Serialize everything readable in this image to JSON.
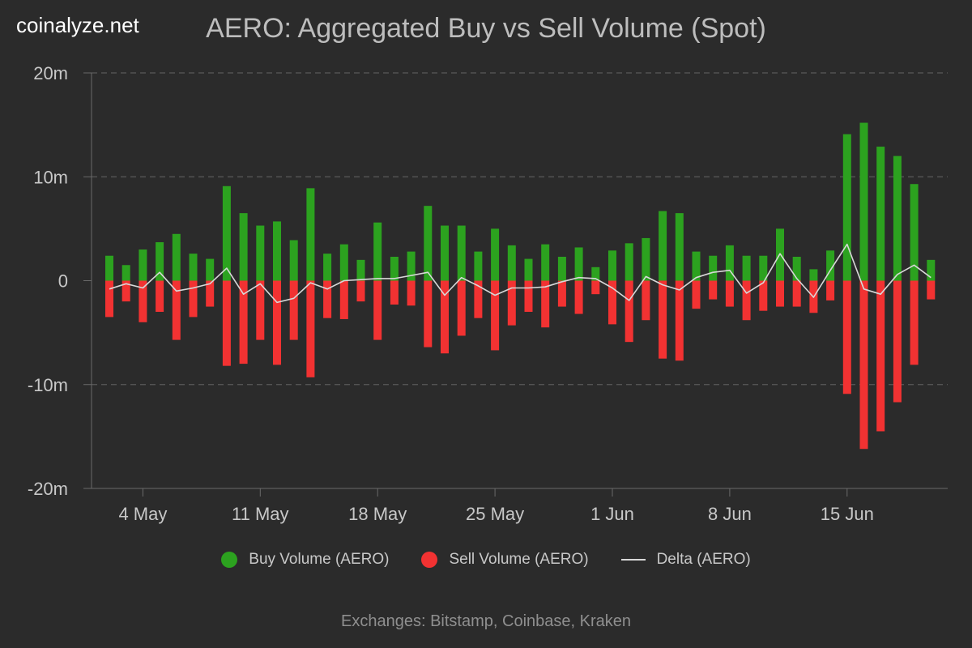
{
  "brand": "coinalyze.net",
  "title": "AERO: Aggregated Buy vs Sell Volume (Spot)",
  "footer": "Exchanges: Bitstamp, Coinbase, Kraken",
  "colors": {
    "buy": "#2ca21f",
    "sell": "#f23232",
    "delta": "#d8d8d8"
  },
  "legend": [
    {
      "label": "Buy Volume (AERO)",
      "key": "buy",
      "shape": "circle"
    },
    {
      "label": "Sell Volume (AERO)",
      "key": "sell",
      "shape": "circle"
    },
    {
      "label": "Delta (AERO)",
      "key": "delta",
      "shape": "line"
    }
  ],
  "chart_data": {
    "type": "bar",
    "title": "AERO: Aggregated Buy vs Sell Volume (Spot)",
    "ylim": [
      -20,
      20
    ],
    "unit": "m",
    "yticks": [
      {
        "value": 20,
        "label": "20m"
      },
      {
        "value": 10,
        "label": "10m"
      },
      {
        "value": 0,
        "label": "0"
      },
      {
        "value": -10,
        "label": "-10m"
      },
      {
        "value": -20,
        "label": "-20m"
      }
    ],
    "grid": true,
    "legend_position": "bottom",
    "xticks": [
      {
        "index": 2,
        "label": "4 May"
      },
      {
        "index": 9,
        "label": "11 May"
      },
      {
        "index": 16,
        "label": "18 May"
      },
      {
        "index": 23,
        "label": "25 May"
      },
      {
        "index": 30,
        "label": "1 Jun"
      },
      {
        "index": 37,
        "label": "8 Jun"
      },
      {
        "index": 44,
        "label": "15 Jun"
      }
    ],
    "series": [
      {
        "name": "Buy Volume (AERO)",
        "type": "bar",
        "values": [
          2.4,
          1.5,
          3.0,
          3.7,
          4.5,
          2.6,
          2.1,
          9.1,
          6.5,
          5.3,
          5.7,
          3.9,
          8.9,
          2.6,
          3.5,
          2.0,
          5.6,
          2.3,
          2.8,
          7.2,
          5.3,
          5.3,
          2.8,
          5.0,
          3.4,
          2.1,
          3.5,
          2.3,
          3.2,
          1.3,
          2.9,
          3.6,
          4.1,
          6.7,
          6.5,
          2.8,
          2.4,
          3.4,
          2.4,
          2.4,
          5.0,
          2.3,
          1.1,
          2.9,
          14.1,
          15.2,
          12.9,
          12.0,
          9.3,
          2.0
        ]
      },
      {
        "name": "Sell Volume (AERO)",
        "type": "bar",
        "values": [
          -3.5,
          -2.0,
          -4.0,
          -3.0,
          -5.7,
          -3.5,
          -2.5,
          -8.2,
          -8.0,
          -5.7,
          -8.1,
          -5.7,
          -9.3,
          -3.6,
          -3.7,
          -2.0,
          -5.7,
          -2.3,
          -2.4,
          -6.4,
          -7.0,
          -5.3,
          -3.6,
          -6.7,
          -4.3,
          -3.0,
          -4.5,
          -2.5,
          -3.2,
          -1.3,
          -4.2,
          -5.9,
          -3.8,
          -7.5,
          -7.7,
          -2.7,
          -1.8,
          -2.5,
          -3.8,
          -2.9,
          -2.5,
          -2.5,
          -3.1,
          -1.9,
          -10.9,
          -16.2,
          -14.5,
          -11.7,
          -8.1,
          -1.8
        ]
      },
      {
        "name": "Delta (AERO)",
        "type": "line",
        "values": [
          -0.8,
          -0.3,
          -0.7,
          0.8,
          -1.0,
          -0.7,
          -0.3,
          1.2,
          -1.3,
          -0.3,
          -2.1,
          -1.7,
          -0.2,
          -0.8,
          0.0,
          0.1,
          0.2,
          0.2,
          0.5,
          0.8,
          -1.4,
          0.3,
          -0.5,
          -1.4,
          -0.7,
          -0.7,
          -0.6,
          -0.1,
          0.3,
          0.2,
          -0.7,
          -1.9,
          0.4,
          -0.4,
          -0.9,
          0.3,
          0.8,
          1.0,
          -1.2,
          -0.2,
          2.6,
          0.2,
          -1.6,
          1.0,
          3.5,
          -0.8,
          -1.3,
          0.6,
          1.5,
          0.3
        ]
      }
    ]
  }
}
